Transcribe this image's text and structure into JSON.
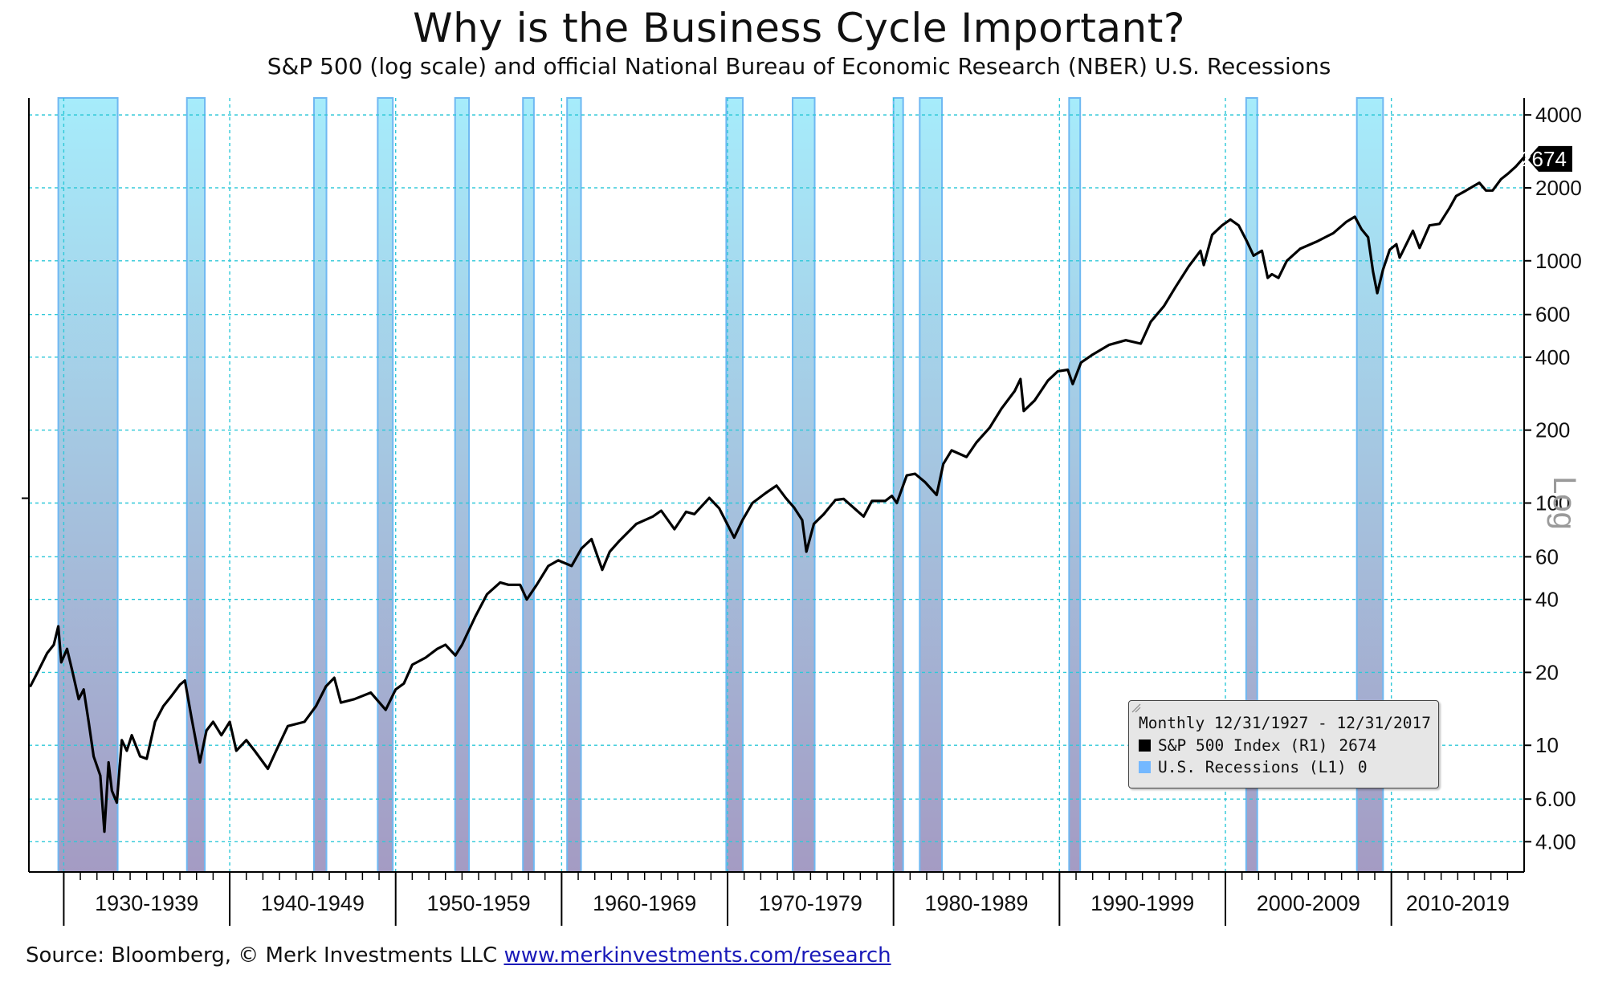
{
  "title": "Why is the Business Cycle Important?",
  "subtitle": "S&P 500 (log scale) and official National Bureau of Economic Research (NBER) U.S. Recessions",
  "source": {
    "text": "Source: Bloomberg, © Merk Investments LLC",
    "link": "www.merkinvestments.com/research"
  },
  "legend": {
    "header": "Monthly 12/31/1927 - 12/31/2017",
    "items": [
      {
        "label": "S&P 500 Index (R1)",
        "value": "2674",
        "color": "#000000"
      },
      {
        "label": "U.S. Recessions (L1)",
        "value": "0",
        "color": "#74b8ff"
      }
    ]
  },
  "colors": {
    "line": "#000000",
    "recession_top": "#a6ecfb",
    "recession_bottom": "#a49bc3",
    "recession_edge": "#6fb8f2",
    "grid": "#2ec8d8",
    "last_value_tag": "#000000"
  },
  "chart_data": {
    "type": "line",
    "scale": "log",
    "x_range": [
      1927.9,
      2018.0
    ],
    "y_range": [
      3.0,
      4700
    ],
    "y_axis_side": "right",
    "y_axis_label": "Log",
    "y_ticks": [
      4000,
      2000,
      1000,
      600,
      400,
      200,
      100,
      60,
      40,
      20,
      10,
      6,
      4
    ],
    "y_tick_labels": [
      "4000",
      "2000",
      "1000",
      "600",
      "400",
      "200",
      "100",
      "60",
      "40",
      "20",
      "10",
      "6.00",
      "4.00"
    ],
    "decade_labels": [
      "1930-1939",
      "1940-1949",
      "1950-1959",
      "1960-1969",
      "1970-1979",
      "1980-1989",
      "1990-1999",
      "2000-2009",
      "2010-2019"
    ],
    "decade_bounds": [
      1930,
      1940,
      1950,
      1960,
      1970,
      1980,
      1990,
      2000,
      2010,
      2020
    ],
    "grid": true,
    "last_value": "2674",
    "recessions": [
      [
        1929.67,
        1933.25
      ],
      [
        1937.42,
        1938.5
      ],
      [
        1945.08,
        1945.83
      ],
      [
        1948.92,
        1949.83
      ],
      [
        1953.58,
        1954.42
      ],
      [
        1957.67,
        1958.33
      ],
      [
        1960.33,
        1961.17
      ],
      [
        1969.92,
        1970.92
      ],
      [
        1973.92,
        1975.25
      ],
      [
        1980.0,
        1980.58
      ],
      [
        1981.58,
        1982.92
      ],
      [
        1990.58,
        1991.25
      ],
      [
        2001.25,
        2001.92
      ],
      [
        2007.92,
        2009.5
      ]
    ],
    "series": [
      {
        "name": "S&P 500 Index (R1)",
        "points": [
          [
            1928.0,
            17.6
          ],
          [
            1928.5,
            20.5
          ],
          [
            1929.0,
            24.0
          ],
          [
            1929.4,
            26.0
          ],
          [
            1929.67,
            31.0
          ],
          [
            1929.85,
            22.0
          ],
          [
            1930.2,
            25.0
          ],
          [
            1930.5,
            20.5
          ],
          [
            1930.9,
            15.5
          ],
          [
            1931.2,
            17.0
          ],
          [
            1931.5,
            12.5
          ],
          [
            1931.8,
            9.0
          ],
          [
            1932.2,
            7.5
          ],
          [
            1932.45,
            4.4
          ],
          [
            1932.7,
            8.5
          ],
          [
            1932.9,
            6.5
          ],
          [
            1933.2,
            5.8
          ],
          [
            1933.5,
            10.5
          ],
          [
            1933.8,
            9.5
          ],
          [
            1934.1,
            11.0
          ],
          [
            1934.6,
            9.0
          ],
          [
            1935.0,
            8.8
          ],
          [
            1935.5,
            12.5
          ],
          [
            1936.0,
            14.5
          ],
          [
            1936.5,
            16.0
          ],
          [
            1937.0,
            17.8
          ],
          [
            1937.3,
            18.5
          ],
          [
            1937.7,
            13.0
          ],
          [
            1938.2,
            8.5
          ],
          [
            1938.6,
            11.5
          ],
          [
            1939.0,
            12.5
          ],
          [
            1939.5,
            11.0
          ],
          [
            1940.0,
            12.5
          ],
          [
            1940.4,
            9.5
          ],
          [
            1941.0,
            10.5
          ],
          [
            1941.5,
            9.5
          ],
          [
            1942.3,
            8.0
          ],
          [
            1942.8,
            9.5
          ],
          [
            1943.5,
            12.0
          ],
          [
            1944.5,
            12.5
          ],
          [
            1945.2,
            14.5
          ],
          [
            1945.8,
            17.5
          ],
          [
            1946.3,
            19.0
          ],
          [
            1946.7,
            15.0
          ],
          [
            1947.5,
            15.5
          ],
          [
            1948.5,
            16.5
          ],
          [
            1949.4,
            14.0
          ],
          [
            1950.0,
            17.0
          ],
          [
            1950.5,
            18.0
          ],
          [
            1951.0,
            21.5
          ],
          [
            1951.8,
            23.0
          ],
          [
            1952.5,
            25.0
          ],
          [
            1953.0,
            26.0
          ],
          [
            1953.6,
            23.5
          ],
          [
            1954.0,
            26.0
          ],
          [
            1954.8,
            34.0
          ],
          [
            1955.5,
            42.0
          ],
          [
            1956.3,
            47.0
          ],
          [
            1956.8,
            46.0
          ],
          [
            1957.5,
            46.0
          ],
          [
            1957.9,
            40.0
          ],
          [
            1958.5,
            46.0
          ],
          [
            1959.2,
            55.0
          ],
          [
            1959.8,
            58.0
          ],
          [
            1960.6,
            55.0
          ],
          [
            1961.2,
            65.0
          ],
          [
            1961.8,
            71.0
          ],
          [
            1962.45,
            53.0
          ],
          [
            1962.9,
            63.0
          ],
          [
            1963.5,
            70.0
          ],
          [
            1964.5,
            82.0
          ],
          [
            1965.5,
            88.0
          ],
          [
            1966.0,
            93.0
          ],
          [
            1966.8,
            78.0
          ],
          [
            1967.5,
            92.0
          ],
          [
            1968.0,
            90.0
          ],
          [
            1968.9,
            105.0
          ],
          [
            1969.5,
            95.0
          ],
          [
            1970.4,
            72.0
          ],
          [
            1970.9,
            85.0
          ],
          [
            1971.5,
            100.0
          ],
          [
            1972.3,
            110.0
          ],
          [
            1972.95,
            118.0
          ],
          [
            1973.5,
            105.0
          ],
          [
            1974.0,
            96.0
          ],
          [
            1974.5,
            85.0
          ],
          [
            1974.75,
            63.0
          ],
          [
            1975.2,
            82.0
          ],
          [
            1975.8,
            90.0
          ],
          [
            1976.5,
            103.0
          ],
          [
            1977.0,
            104.0
          ],
          [
            1977.8,
            93.0
          ],
          [
            1978.2,
            88.0
          ],
          [
            1978.7,
            102.0
          ],
          [
            1979.5,
            102.0
          ],
          [
            1979.9,
            107.0
          ],
          [
            1980.2,
            100.0
          ],
          [
            1980.8,
            130.0
          ],
          [
            1981.3,
            132.0
          ],
          [
            1981.9,
            122.0
          ],
          [
            1982.6,
            108.0
          ],
          [
            1983.0,
            145.0
          ],
          [
            1983.5,
            165.0
          ],
          [
            1984.4,
            155.0
          ],
          [
            1985.0,
            178.0
          ],
          [
            1985.8,
            205.0
          ],
          [
            1986.5,
            245.0
          ],
          [
            1987.3,
            290.0
          ],
          [
            1987.65,
            325.0
          ],
          [
            1987.85,
            240.0
          ],
          [
            1988.5,
            265.0
          ],
          [
            1989.3,
            320.0
          ],
          [
            1989.9,
            350.0
          ],
          [
            1990.5,
            355.0
          ],
          [
            1990.8,
            310.0
          ],
          [
            1991.3,
            380.0
          ],
          [
            1992.0,
            410.0
          ],
          [
            1993.0,
            450.0
          ],
          [
            1994.0,
            470.0
          ],
          [
            1994.9,
            455.0
          ],
          [
            1995.5,
            560.0
          ],
          [
            1996.3,
            650.0
          ],
          [
            1997.0,
            780.0
          ],
          [
            1997.8,
            950.0
          ],
          [
            1998.5,
            1100.0
          ],
          [
            1998.7,
            960.0
          ],
          [
            1999.2,
            1280.0
          ],
          [
            1999.8,
            1400.0
          ],
          [
            2000.3,
            1480.0
          ],
          [
            2000.8,
            1400.0
          ],
          [
            2001.3,
            1200.0
          ],
          [
            2001.7,
            1050.0
          ],
          [
            2002.2,
            1100.0
          ],
          [
            2002.55,
            850.0
          ],
          [
            2002.8,
            880.0
          ],
          [
            2003.2,
            850.0
          ],
          [
            2003.7,
            1000.0
          ],
          [
            2004.5,
            1120.0
          ],
          [
            2005.5,
            1200.0
          ],
          [
            2006.5,
            1300.0
          ],
          [
            2007.3,
            1450.0
          ],
          [
            2007.8,
            1520.0
          ],
          [
            2008.2,
            1350.0
          ],
          [
            2008.6,
            1250.0
          ],
          [
            2008.9,
            900.0
          ],
          [
            2009.15,
            735.0
          ],
          [
            2009.5,
            920.0
          ],
          [
            2009.9,
            1110.0
          ],
          [
            2010.3,
            1170.0
          ],
          [
            2010.5,
            1030.0
          ],
          [
            2011.3,
            1330.0
          ],
          [
            2011.7,
            1130.0
          ],
          [
            2012.3,
            1400.0
          ],
          [
            2012.9,
            1420.0
          ],
          [
            2013.5,
            1650.0
          ],
          [
            2013.9,
            1850.0
          ],
          [
            2014.5,
            1950.0
          ],
          [
            2015.3,
            2100.0
          ],
          [
            2015.7,
            1950.0
          ],
          [
            2016.1,
            1950.0
          ],
          [
            2016.6,
            2170.0
          ],
          [
            2017.0,
            2280.0
          ],
          [
            2017.5,
            2450.0
          ],
          [
            2017.99,
            2674.0
          ]
        ]
      }
    ]
  }
}
